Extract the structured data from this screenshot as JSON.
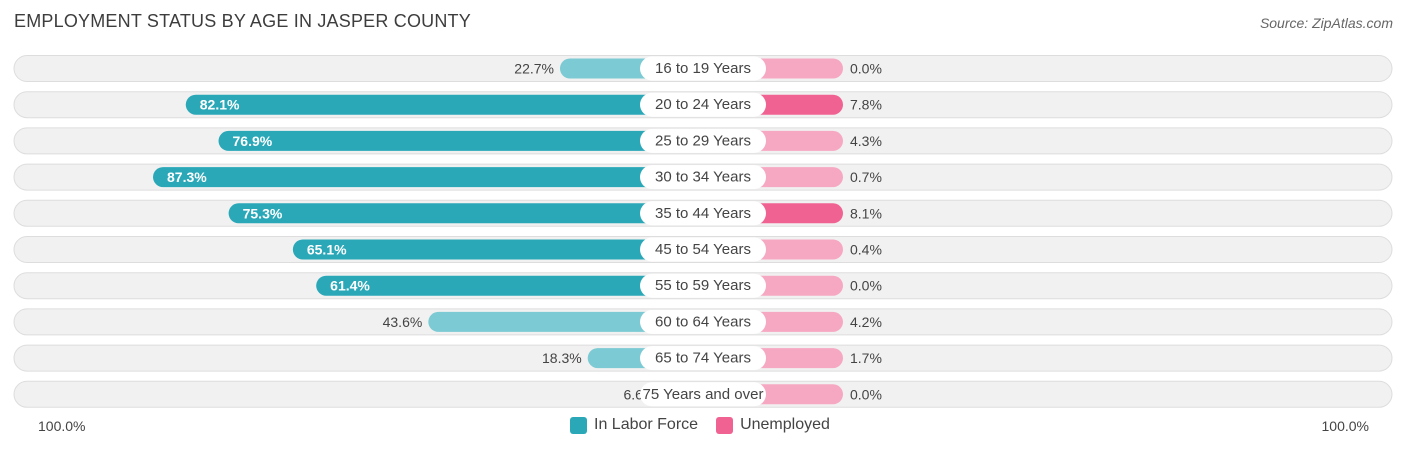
{
  "title": "EMPLOYMENT STATUS BY AGE IN JASPER COUNTY",
  "source": "Source: ZipAtlas.com",
  "axis": {
    "left_label": "100.0%",
    "right_label": "100.0%"
  },
  "legend": [
    {
      "label": "In Labor Force",
      "color": "#2aa8b8"
    },
    {
      "label": "Unemployed",
      "color": "#f06292"
    }
  ],
  "chart_data": {
    "type": "bar",
    "orientation": "horizontal-diverging",
    "categories": [
      "16 to 19 Years",
      "20 to 24 Years",
      "25 to 29 Years",
      "30 to 34 Years",
      "35 to 44 Years",
      "45 to 54 Years",
      "55 to 59 Years",
      "60 to 64 Years",
      "65 to 74 Years",
      "75 Years and over"
    ],
    "series": [
      {
        "name": "In Labor Force",
        "values": [
          22.7,
          82.1,
          76.9,
          87.3,
          75.3,
          65.1,
          61.4,
          43.6,
          18.3,
          6.6
        ],
        "labels": [
          "22.7%",
          "82.1%",
          "76.9%",
          "87.3%",
          "75.3%",
          "65.1%",
          "61.4%",
          "43.6%",
          "18.3%",
          "6.6%"
        ]
      },
      {
        "name": "Unemployed",
        "values": [
          0.0,
          7.8,
          4.3,
          0.7,
          8.1,
          0.4,
          0.0,
          4.2,
          1.7,
          0.0
        ],
        "labels": [
          "0.0%",
          "7.8%",
          "4.3%",
          "0.7%",
          "8.1%",
          "0.4%",
          "0.0%",
          "4.2%",
          "1.7%",
          "0.0%"
        ]
      }
    ],
    "xlim": [
      -100,
      100
    ],
    "colors": {
      "labor_strong": "#2aa8b8",
      "labor_light": "#7ccad3",
      "unemployed_strong": "#f06292",
      "unemployed_light": "#f6a8c2",
      "track": "#f1f1f1",
      "track_border": "#dddddd"
    }
  }
}
